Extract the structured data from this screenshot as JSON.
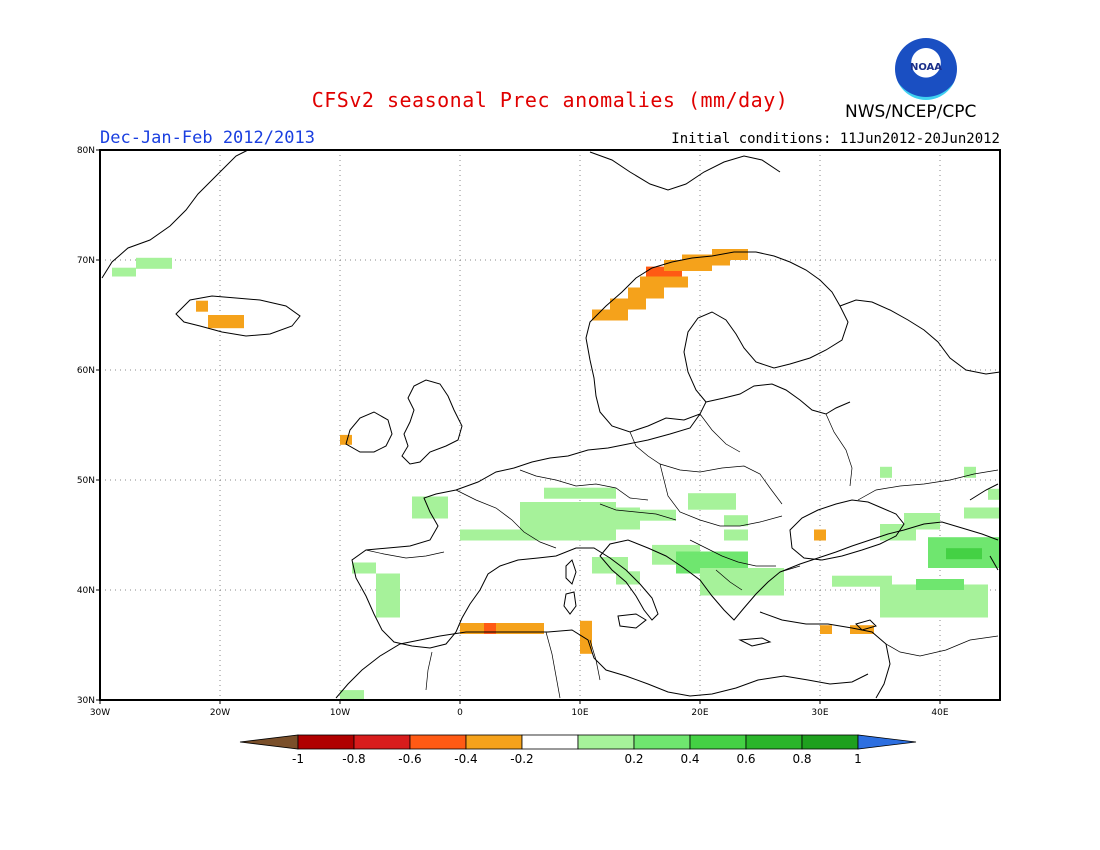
{
  "header": {
    "title": "CFSv2 seasonal Prec anomalies (mm/day)",
    "agency": "NWS/NCEP/CPC",
    "logo_text": "NOAA",
    "season": "Dec-Jan-Feb 2012/2013",
    "initial_conditions": "Initial conditions: 11Jun2012-20Jun2012"
  },
  "map": {
    "lon_range": [
      -30,
      45
    ],
    "lat_range": [
      30,
      80
    ],
    "lon_labels": [
      {
        "lon": -30,
        "text": "30W"
      },
      {
        "lon": -20,
        "text": "20W"
      },
      {
        "lon": -10,
        "text": "10W"
      },
      {
        "lon": 0,
        "text": "0"
      },
      {
        "lon": 10,
        "text": "10E"
      },
      {
        "lon": 20,
        "text": "20E"
      },
      {
        "lon": 30,
        "text": "30E"
      },
      {
        "lon": 40,
        "text": "40E"
      }
    ],
    "lat_labels": [
      {
        "lat": 30,
        "text": "30N"
      },
      {
        "lat": 40,
        "text": "40N"
      },
      {
        "lat": 50,
        "text": "50N"
      },
      {
        "lat": 60,
        "text": "60N"
      },
      {
        "lat": 70,
        "text": "70N"
      },
      {
        "lat": 80,
        "text": "80N"
      }
    ],
    "anomaly_cells": [
      {
        "lon": -29,
        "lat": 68.5,
        "w": 2,
        "h": 0.8,
        "value": 0.3
      },
      {
        "lon": -27,
        "lat": 69.2,
        "w": 3,
        "h": 1,
        "value": 0.3
      },
      {
        "lon": -22,
        "lat": 65.3,
        "w": 1,
        "h": 1,
        "value": -0.3
      },
      {
        "lon": -21,
        "lat": 63.8,
        "w": 3,
        "h": 1.2,
        "value": -0.3
      },
      {
        "lon": -10,
        "lat": 53.2,
        "w": 1,
        "h": 0.9,
        "value": -0.3
      },
      {
        "lon": 7,
        "lat": 48.3,
        "w": 6,
        "h": 1,
        "value": 0.3
      },
      {
        "lon": 5,
        "lat": 44.5,
        "w": 8,
        "h": 3.5,
        "value": 0.3
      },
      {
        "lon": 0,
        "lat": 44.5,
        "w": 5,
        "h": 1,
        "value": 0.3
      },
      {
        "lon": -4,
        "lat": 46.5,
        "w": 3,
        "h": 2,
        "value": 0.3
      },
      {
        "lon": 13,
        "lat": 45.5,
        "w": 2,
        "h": 2,
        "value": 0.3
      },
      {
        "lon": 15,
        "lat": 46.3,
        "w": 3,
        "h": 1,
        "value": 0.3
      },
      {
        "lon": 19,
        "lat": 47.3,
        "w": 4,
        "h": 1.5,
        "value": 0.3
      },
      {
        "lon": 22,
        "lat": 44.5,
        "w": 2,
        "h": 1,
        "value": 0.3
      },
      {
        "lon": 11,
        "lat": 41.5,
        "w": 3,
        "h": 1.5,
        "value": 0.3
      },
      {
        "lon": 13,
        "lat": 40.5,
        "w": 2,
        "h": 1.2,
        "value": 0.3
      },
      {
        "lon": 16,
        "lat": 42.3,
        "w": 4,
        "h": 1.8,
        "value": 0.3
      },
      {
        "lon": 18,
        "lat": 41.5,
        "w": 6,
        "h": 2,
        "value": 0.4
      },
      {
        "lon": 19,
        "lat": 42.2,
        "w": 2,
        "h": 1,
        "value": 0.6
      },
      {
        "lon": 20,
        "lat": 39.5,
        "w": 7,
        "h": 2.5,
        "value": 0.3
      },
      {
        "lon": 29.5,
        "lat": 44.5,
        "w": 1,
        "h": 1,
        "value": -0.3
      },
      {
        "lon": -9,
        "lat": 41.5,
        "w": 2,
        "h": 1,
        "value": 0.3
      },
      {
        "lon": -7,
        "lat": 37.5,
        "w": 2,
        "h": 4,
        "value": 0.3
      },
      {
        "lon": -10,
        "lat": 30,
        "w": 2,
        "h": 0.9,
        "value": 0.3
      },
      {
        "lon": 0,
        "lat": 36,
        "w": 2,
        "h": 1,
        "value": -0.3
      },
      {
        "lon": 2,
        "lat": 36,
        "w": 1,
        "h": 1,
        "value": -0.5
      },
      {
        "lon": 3,
        "lat": 36,
        "w": 4,
        "h": 1,
        "value": -0.3
      },
      {
        "lon": 10,
        "lat": 34.2,
        "w": 1,
        "h": 3,
        "value": -0.3
      },
      {
        "lon": 30,
        "lat": 36,
        "w": 1,
        "h": 0.8,
        "value": -0.3
      },
      {
        "lon": 32.5,
        "lat": 36,
        "w": 2,
        "h": 0.8,
        "value": -0.3
      },
      {
        "lon": 31,
        "lat": 40.3,
        "w": 5,
        "h": 1,
        "value": 0.3
      },
      {
        "lon": 35,
        "lat": 37.5,
        "w": 9,
        "h": 3,
        "value": 0.3
      },
      {
        "lon": 38,
        "lat": 40,
        "w": 4,
        "h": 1,
        "value": 0.4
      },
      {
        "lon": 35,
        "lat": 44.5,
        "w": 3,
        "h": 1.5,
        "value": 0.3
      },
      {
        "lon": 37,
        "lat": 45.5,
        "w": 3,
        "h": 1.5,
        "value": 0.3
      },
      {
        "lon": 39,
        "lat": 42,
        "w": 6,
        "h": 2.8,
        "value": 0.4
      },
      {
        "lon": 40.5,
        "lat": 42.8,
        "w": 3,
        "h": 1,
        "value": 0.7
      },
      {
        "lon": 35,
        "lat": 50.2,
        "w": 1,
        "h": 1,
        "value": 0.3
      },
      {
        "lon": 42,
        "lat": 50.2,
        "w": 1,
        "h": 1,
        "value": 0.3
      },
      {
        "lon": 42,
        "lat": 46.5,
        "w": 3,
        "h": 1,
        "value": 0.3
      },
      {
        "lon": 44,
        "lat": 48.2,
        "w": 1,
        "h": 1,
        "value": 0.3
      },
      {
        "lon": 22,
        "lat": 45.8,
        "w": 2,
        "h": 1,
        "value": 0.3
      },
      {
        "lon": 11,
        "lat": 64.5,
        "w": 3,
        "h": 1,
        "value": -0.3
      },
      {
        "lon": 12.5,
        "lat": 65.5,
        "w": 3,
        "h": 1,
        "value": -0.3
      },
      {
        "lon": 14,
        "lat": 66.5,
        "w": 3,
        "h": 1,
        "value": -0.3
      },
      {
        "lon": 15,
        "lat": 67.5,
        "w": 4,
        "h": 1,
        "value": -0.3
      },
      {
        "lon": 15.5,
        "lat": 68.5,
        "w": 3,
        "h": 0.9,
        "value": -0.45
      },
      {
        "lon": 17,
        "lat": 69,
        "w": 4,
        "h": 1,
        "value": -0.3
      },
      {
        "lon": 18.5,
        "lat": 69.5,
        "w": 4,
        "h": 1,
        "value": -0.3
      },
      {
        "lon": 21,
        "lat": 70,
        "w": 3,
        "h": 1,
        "value": -0.3
      }
    ]
  },
  "colorbar": {
    "colors": [
      "#7a4f2a",
      "#b00000",
      "#d81c1c",
      "#ff5a14",
      "#f5a21b",
      "#ffffff",
      "#a6f29a",
      "#6fe66f",
      "#44d144",
      "#2ab52a",
      "#1ea01e",
      "#2d6fe0"
    ],
    "labels": [
      "-1",
      "-0.8",
      "-0.6",
      "-0.4",
      "-0.2",
      "0.2",
      "0.4",
      "0.6",
      "0.8",
      "1"
    ]
  }
}
